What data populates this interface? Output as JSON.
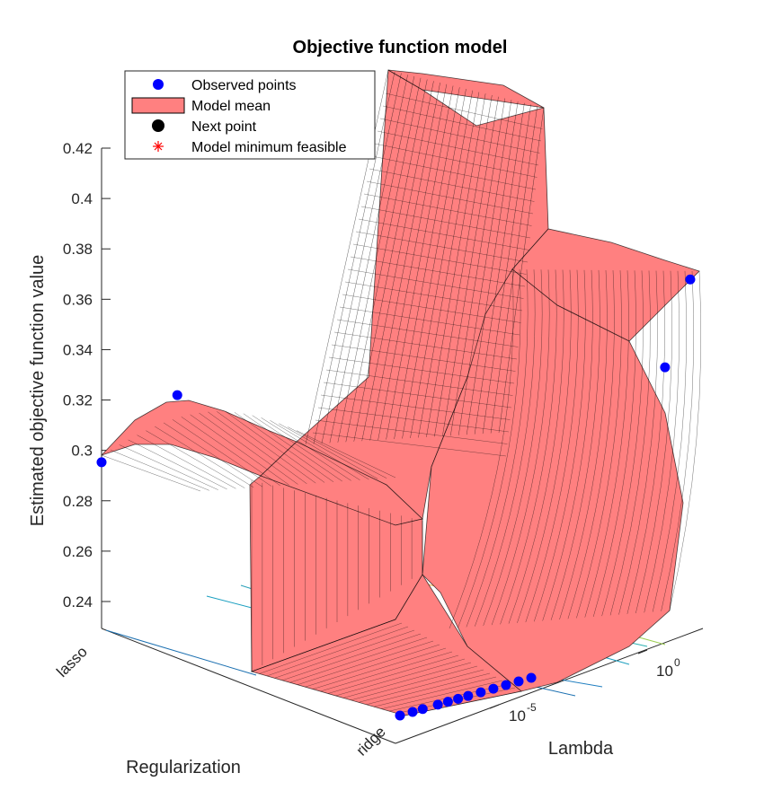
{
  "chart_data": {
    "type": "surface",
    "title": "Objective function model",
    "zlabel": "Estimated objective function value",
    "xlabel": "Lambda",
    "ylabel": "Regularization",
    "z_ticks": [
      0.24,
      0.26,
      0.28,
      0.3,
      0.32,
      0.34,
      0.36,
      0.38,
      0.4,
      0.42
    ],
    "zlim": [
      0.23,
      0.42
    ],
    "x_scale": "log",
    "x_ticks": [
      {
        "base": "10",
        "exp": "-5"
      },
      {
        "base": "10",
        "exp": "0"
      }
    ],
    "y_ticks": [
      "lasso",
      "ridge"
    ],
    "legend": {
      "placement": "top-left",
      "entries": [
        {
          "label": "Observed points",
          "marker": "dot",
          "color": "#0000ff"
        },
        {
          "label": "Model mean",
          "marker": "patch",
          "color": "#ff8080"
        },
        {
          "label": "Next point",
          "marker": "dot",
          "color": "#000000"
        },
        {
          "label": "Model minimum feasible",
          "marker": "asterisk",
          "color": "#ff0000"
        }
      ]
    },
    "colors": {
      "surface": "#ff8080",
      "observed": "#0000ff",
      "grid_line": "#000000"
    },
    "observed_points": [
      {
        "lambda_exp": -9.5,
        "regularization": "ridge",
        "value": 0.232
      },
      {
        "lambda_exp": -9.0,
        "regularization": "ridge",
        "value": 0.232
      },
      {
        "lambda_exp": -8.6,
        "regularization": "ridge",
        "value": 0.232
      },
      {
        "lambda_exp": -8.0,
        "regularization": "ridge",
        "value": 0.232
      },
      {
        "lambda_exp": -7.6,
        "regularization": "ridge",
        "value": 0.232
      },
      {
        "lambda_exp": -7.2,
        "regularization": "ridge",
        "value": 0.232
      },
      {
        "lambda_exp": -6.8,
        "regularization": "ridge",
        "value": 0.232
      },
      {
        "lambda_exp": -6.3,
        "regularization": "ridge",
        "value": 0.232
      },
      {
        "lambda_exp": -5.8,
        "regularization": "ridge",
        "value": 0.232
      },
      {
        "lambda_exp": -5.3,
        "regularization": "ridge",
        "value": 0.232
      },
      {
        "lambda_exp": -4.8,
        "regularization": "ridge",
        "value": 0.232
      },
      {
        "lambda_exp": -4.3,
        "regularization": "ridge",
        "value": 0.232
      },
      {
        "lambda_exp": 1.0,
        "regularization": "ridge",
        "value": 0.34
      },
      {
        "lambda_exp": 2.0,
        "regularization": "ridge",
        "value": 0.372
      },
      {
        "lambda_exp": -9.5,
        "regularization": "lasso",
        "value": 0.298
      },
      {
        "lambda_exp": -6.5,
        "regularization": "lasso",
        "value": 0.316
      }
    ]
  }
}
